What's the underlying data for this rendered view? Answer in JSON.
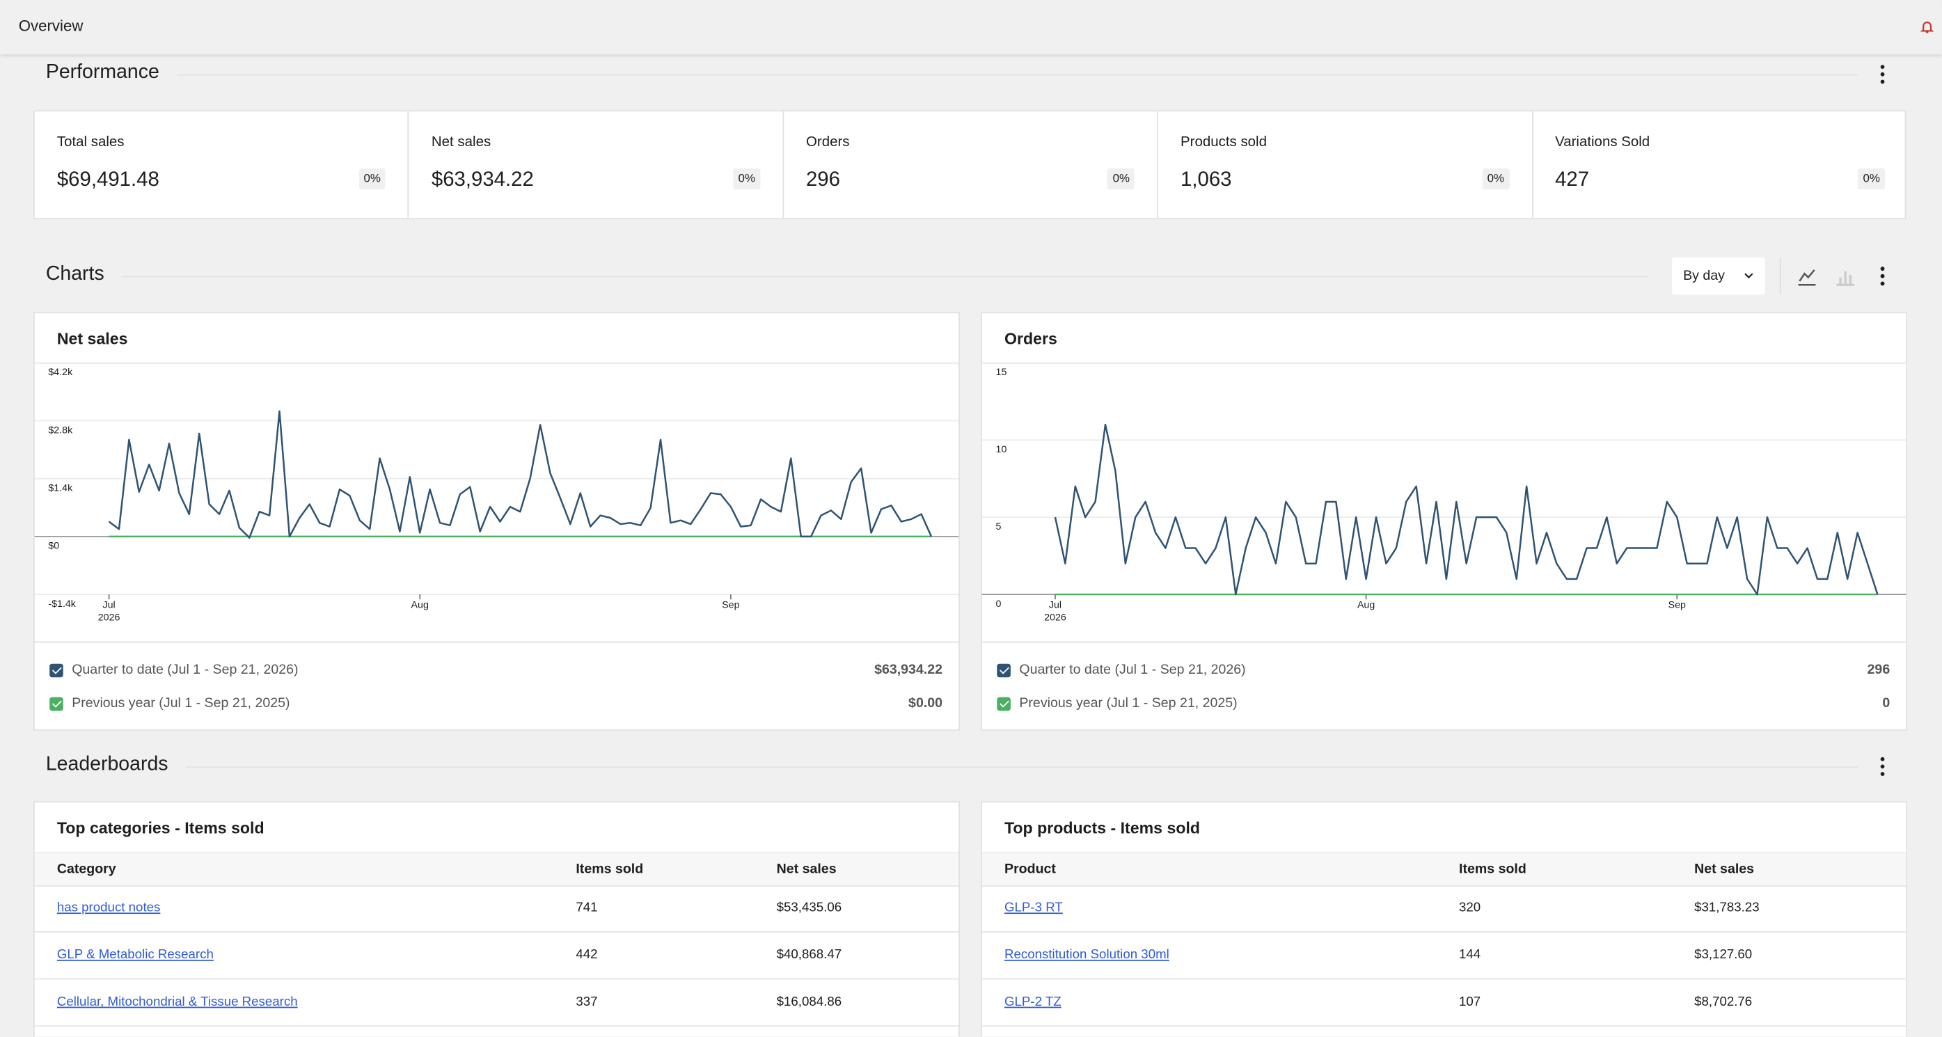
{
  "header": {
    "title": "Overview"
  },
  "performance": {
    "title": "Performance",
    "cards": [
      {
        "label": "Total sales",
        "value": "$69,491.48",
        "change": "0%"
      },
      {
        "label": "Net sales",
        "value": "$63,934.22",
        "change": "0%"
      },
      {
        "label": "Orders",
        "value": 296,
        "change": "0%"
      },
      {
        "label": "Products sold",
        "value": "1,063",
        "change": "0%"
      },
      {
        "label": "Variations Sold",
        "value": 427,
        "change": "0%"
      }
    ]
  },
  "charts_section": {
    "title": "Charts",
    "interval": "By day"
  },
  "chart_data": [
    {
      "type": "line",
      "title": "Net sales",
      "categories": [
        "Jul 2026",
        null,
        null,
        null,
        null,
        null,
        null,
        null,
        null,
        null,
        null,
        null,
        null,
        null,
        null,
        null,
        null,
        null,
        null,
        null,
        null,
        null,
        null,
        null,
        null,
        null,
        null,
        null,
        null,
        null,
        null,
        "Aug",
        null,
        null,
        null,
        null,
        null,
        null,
        null,
        null,
        null,
        null,
        null,
        null,
        null,
        null,
        null,
        null,
        null,
        null,
        null,
        null,
        null,
        null,
        null,
        null,
        null,
        null,
        null,
        null,
        null,
        null,
        "Sep",
        null,
        null,
        null,
        null,
        null,
        null,
        null,
        null,
        null,
        null,
        null,
        null,
        null,
        null,
        null,
        null,
        null,
        null,
        null,
        null
      ],
      "ylim": [
        -1400,
        4200
      ],
      "yticks": [
        {
          "value": -1400,
          "label": "-$1.4k"
        },
        {
          "value": 0,
          "label": "$0"
        },
        {
          "value": 1400,
          "label": "$1.4k"
        },
        {
          "value": 2800,
          "label": "$2.8k"
        },
        {
          "value": 4200,
          "label": "$4.2k"
        }
      ],
      "grid": true,
      "series": [
        {
          "name": "Quarter to date (Jul 1 - Sep 21, 2026)",
          "color": "#2f5373",
          "total": "$63,934.22",
          "values": [
            360,
            180,
            2340,
            1080,
            1740,
            1110,
            2250,
            1050,
            540,
            2490,
            780,
            540,
            1110,
            210,
            -30,
            600,
            510,
            3030,
            0,
            450,
            780,
            330,
            240,
            1140,
            990,
            390,
            180,
            1890,
            1140,
            120,
            1440,
            90,
            1140,
            330,
            270,
            1020,
            1200,
            120,
            720,
            360,
            720,
            600,
            1410,
            2700,
            1530,
            930,
            300,
            1050,
            240,
            510,
            450,
            300,
            330,
            270,
            690,
            2340,
            330,
            390,
            300,
            660,
            1050,
            1020,
            720,
            240,
            270,
            900,
            720,
            600,
            1890,
            0,
            0,
            510,
            630,
            420,
            1320,
            1650,
            90,
            660,
            750,
            360,
            420,
            540,
            0
          ]
        },
        {
          "name": "Previous year (Jul 1 - Sep 21, 2025)",
          "color": "#4caf64",
          "total": "$0.00",
          "values": [
            0,
            0,
            0,
            0,
            0,
            0,
            0,
            0,
            0,
            0,
            0,
            0,
            0,
            0,
            0,
            0,
            0,
            0,
            0,
            0,
            0,
            0,
            0,
            0,
            0,
            0,
            0,
            0,
            0,
            0,
            0,
            0,
            0,
            0,
            0,
            0,
            0,
            0,
            0,
            0,
            0,
            0,
            0,
            0,
            0,
            0,
            0,
            0,
            0,
            0,
            0,
            0,
            0,
            0,
            0,
            0,
            0,
            0,
            0,
            0,
            0,
            0,
            0,
            0,
            0,
            0,
            0,
            0,
            0,
            0,
            0,
            0,
            0,
            0,
            0,
            0,
            0,
            0,
            0,
            0,
            0,
            0,
            0
          ]
        }
      ]
    },
    {
      "type": "line",
      "title": "Orders",
      "categories": [
        "Jul 2026",
        null,
        null,
        null,
        null,
        null,
        null,
        null,
        null,
        null,
        null,
        null,
        null,
        null,
        null,
        null,
        null,
        null,
        null,
        null,
        null,
        null,
        null,
        null,
        null,
        null,
        null,
        null,
        null,
        null,
        null,
        "Aug",
        null,
        null,
        null,
        null,
        null,
        null,
        null,
        null,
        null,
        null,
        null,
        null,
        null,
        null,
        null,
        null,
        null,
        null,
        null,
        null,
        null,
        null,
        null,
        null,
        null,
        null,
        null,
        null,
        null,
        null,
        "Sep",
        null,
        null,
        null,
        null,
        null,
        null,
        null,
        null,
        null,
        null,
        null,
        null,
        null,
        null,
        null,
        null,
        null,
        null,
        null,
        null
      ],
      "ylim": [
        0,
        15
      ],
      "yticks": [
        0,
        5,
        10,
        15
      ],
      "grid": true,
      "series": [
        {
          "name": "Quarter to date (Jul 1 - Sep 21, 2026)",
          "color": "#2f5373",
          "total": 296,
          "values": [
            5,
            2,
            7,
            5,
            6,
            11,
            8,
            2,
            5,
            6,
            4,
            3,
            5,
            3,
            3,
            2,
            3,
            5,
            0,
            3,
            5,
            4,
            2,
            6,
            5,
            2,
            2,
            6,
            6,
            1,
            5,
            1,
            5,
            2,
            3,
            6,
            7,
            2,
            6,
            1,
            6,
            2,
            5,
            5,
            5,
            4,
            1,
            7,
            2,
            4,
            2,
            1,
            1,
            3,
            3,
            5,
            2,
            3,
            3,
            3,
            3,
            6,
            5,
            2,
            2,
            2,
            5,
            3,
            5,
            1,
            0,
            5,
            3,
            3,
            2,
            3,
            1,
            1,
            4,
            1,
            4,
            2,
            0
          ]
        },
        {
          "name": "Previous year (Jul 1 - Sep 21, 2025)",
          "color": "#4caf64",
          "total": 0,
          "values": [
            0,
            0,
            0,
            0,
            0,
            0,
            0,
            0,
            0,
            0,
            0,
            0,
            0,
            0,
            0,
            0,
            0,
            0,
            0,
            0,
            0,
            0,
            0,
            0,
            0,
            0,
            0,
            0,
            0,
            0,
            0,
            0,
            0,
            0,
            0,
            0,
            0,
            0,
            0,
            0,
            0,
            0,
            0,
            0,
            0,
            0,
            0,
            0,
            0,
            0,
            0,
            0,
            0,
            0,
            0,
            0,
            0,
            0,
            0,
            0,
            0,
            0,
            0,
            0,
            0,
            0,
            0,
            0,
            0,
            0,
            0,
            0,
            0,
            0,
            0,
            0,
            0,
            0,
            0,
            0,
            0,
            0,
            0
          ]
        }
      ]
    }
  ],
  "leaderboards": {
    "title": "Leaderboards",
    "tables": [
      {
        "title": "Top categories - Items sold",
        "columns": [
          "Category",
          "Items sold",
          "Net sales"
        ],
        "rows": [
          [
            "has product notes",
            741,
            "$53,435.06"
          ],
          [
            "GLP & Metabolic Research",
            442,
            "$40,868.47"
          ],
          [
            "Cellular, Mitochondrial & Tissue Research",
            337,
            "$16,084.86"
          ]
        ]
      },
      {
        "title": "Top products - Items sold",
        "columns": [
          "Product",
          "Items sold",
          "Net sales"
        ],
        "rows": [
          [
            "GLP-3 RT",
            320,
            "$31,783.23"
          ],
          [
            "Reconstitution Solution 30ml",
            144,
            "$3,127.60"
          ],
          [
            "GLP-2 TZ",
            107,
            "$8,702.76"
          ]
        ]
      }
    ]
  }
}
